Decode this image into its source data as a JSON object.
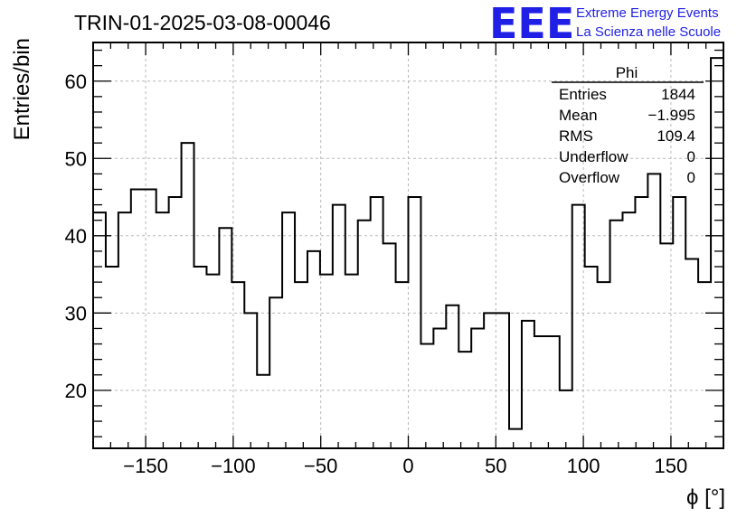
{
  "header": {
    "run_title": "TRIN-01-2025-03-08-00046",
    "logo": "EEE",
    "logo_line1": "Extreme Energy Events",
    "logo_line2": "La Scienza nelle Scuole"
  },
  "stats": {
    "name": "Phi",
    "rows": [
      {
        "label": "Entries",
        "value": "1844"
      },
      {
        "label": "Mean",
        "value": "−1.995"
      },
      {
        "label": "RMS",
        "value": "109.4"
      },
      {
        "label": "Underflow",
        "value": "0"
      },
      {
        "label": "Overflow",
        "value": "0"
      }
    ]
  },
  "colors": {
    "logo": "#1f1fe6",
    "line": "#000000",
    "grid": "#b8b8b8"
  },
  "chart_data": {
    "type": "bar",
    "style": "step-histogram",
    "title": "TRIN-01-2025-03-08-00046",
    "xlabel": "ϕ [°]",
    "ylabel": "Entries/bin",
    "xlim": [
      -180,
      180
    ],
    "ylim": [
      12.5,
      65
    ],
    "grid": true,
    "x_ticks": [
      -150,
      -100,
      -50,
      0,
      50,
      100,
      150
    ],
    "x_tick_labels": [
      "−150",
      "−100",
      "−50",
      "0",
      "50",
      "100",
      "150"
    ],
    "y_ticks": [
      20,
      30,
      40,
      50,
      60
    ],
    "y_tick_labels": [
      "20",
      "30",
      "40",
      "50",
      "60"
    ],
    "bin_width": 7.2,
    "values": [
      43,
      36,
      43,
      46,
      46,
      43,
      45,
      52,
      36,
      35,
      41,
      34,
      30,
      22,
      32,
      43,
      34,
      38,
      35,
      44,
      35,
      42,
      45,
      39,
      34,
      45,
      26,
      28,
      31,
      25,
      28,
      30,
      30,
      15,
      29,
      27,
      27,
      20,
      44,
      36,
      34,
      42,
      43,
      45,
      48,
      39,
      45,
      37,
      34,
      63
    ]
  }
}
